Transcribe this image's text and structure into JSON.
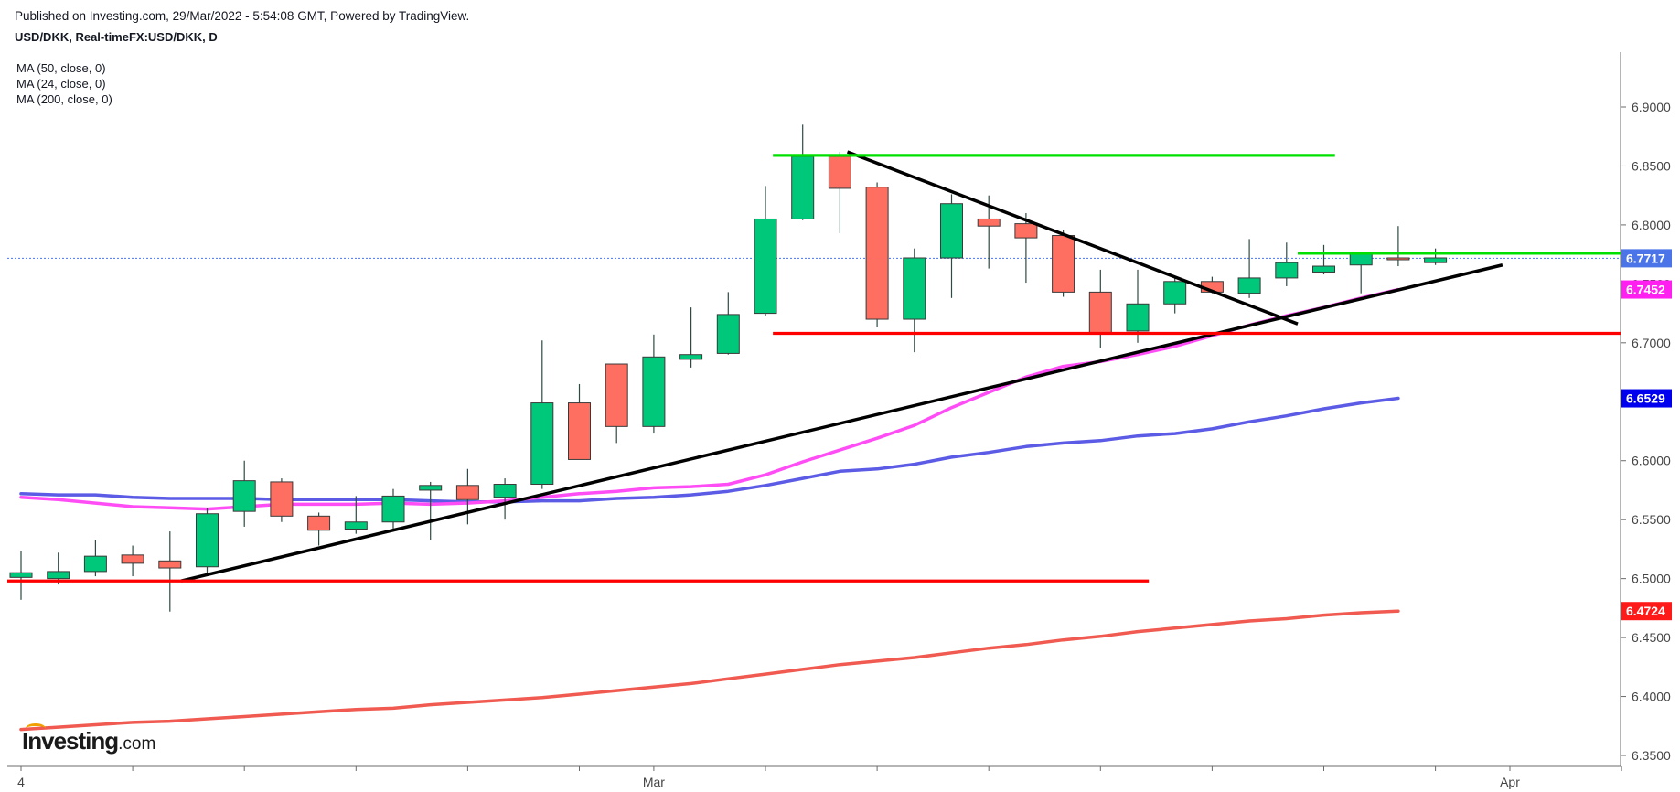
{
  "header": {
    "published": "Published on Investing.com, 29/Mar/2022 - 5:54:08 GMT, Powered by TradingView.",
    "symbol": "USD/DKK, Real-timeFX:USD/DKK, D"
  },
  "legend": {
    "ma50": "MA (50, close, 0)",
    "ma24": "MA (24, close, 0)",
    "ma200": "MA (200, close, 0)"
  },
  "logo": {
    "brand": "Investing",
    "suffix": ".com"
  },
  "chart_data": {
    "type": "candlestick",
    "y_axis": {
      "ticks": [
        "6.3500",
        "6.4000",
        "6.4500",
        "6.5000",
        "6.5500",
        "6.6000",
        "6.6500",
        "6.7000",
        "6.7500",
        "6.8000",
        "6.8500",
        "6.9000"
      ],
      "range": [
        6.342,
        6.945
      ],
      "position": "right"
    },
    "x_axis": {
      "labels": [
        {
          "bar": 0,
          "text": "4"
        },
        {
          "bar": 17,
          "text": "Mar"
        },
        {
          "bar": 40,
          "text": "Apr"
        }
      ],
      "tick_bars": [
        0,
        3,
        6,
        9,
        12,
        15,
        17,
        20,
        23,
        26,
        29,
        32,
        35,
        38,
        40,
        43
      ],
      "total_slots": 43.2
    },
    "candles": [
      {
        "o": 6.501,
        "h": 6.523,
        "l": 6.482,
        "c": 6.505
      },
      {
        "o": 6.5,
        "h": 6.522,
        "l": 6.495,
        "c": 6.506
      },
      {
        "o": 6.506,
        "h": 6.533,
        "l": 6.502,
        "c": 6.519
      },
      {
        "o": 6.52,
        "h": 6.528,
        "l": 6.502,
        "c": 6.513
      },
      {
        "o": 6.515,
        "h": 6.54,
        "l": 6.472,
        "c": 6.509
      },
      {
        "o": 6.51,
        "h": 6.56,
        "l": 6.505,
        "c": 6.555
      },
      {
        "o": 6.557,
        "h": 6.6,
        "l": 6.544,
        "c": 6.583
      },
      {
        "o": 6.582,
        "h": 6.585,
        "l": 6.548,
        "c": 6.553
      },
      {
        "o": 6.553,
        "h": 6.556,
        "l": 6.528,
        "c": 6.541
      },
      {
        "o": 6.542,
        "h": 6.57,
        "l": 6.538,
        "c": 6.548
      },
      {
        "o": 6.548,
        "h": 6.576,
        "l": 6.542,
        "c": 6.57
      },
      {
        "o": 6.575,
        "h": 6.582,
        "l": 6.533,
        "c": 6.579
      },
      {
        "o": 6.579,
        "h": 6.593,
        "l": 6.546,
        "c": 6.567
      },
      {
        "o": 6.569,
        "h": 6.585,
        "l": 6.55,
        "c": 6.58
      },
      {
        "o": 6.58,
        "h": 6.702,
        "l": 6.576,
        "c": 6.649
      },
      {
        "o": 6.649,
        "h": 6.665,
        "l": 6.601,
        "c": 6.601
      },
      {
        "o": 6.682,
        "h": 6.682,
        "l": 6.615,
        "c": 6.629
      },
      {
        "o": 6.629,
        "h": 6.707,
        "l": 6.623,
        "c": 6.688
      },
      {
        "o": 6.686,
        "h": 6.73,
        "l": 6.679,
        "c": 6.69
      },
      {
        "o": 6.691,
        "h": 6.743,
        "l": 6.69,
        "c": 6.724
      },
      {
        "o": 6.725,
        "h": 6.833,
        "l": 6.723,
        "c": 6.805
      },
      {
        "o": 6.805,
        "h": 6.885,
        "l": 6.804,
        "c": 6.858
      },
      {
        "o": 6.858,
        "h": 6.862,
        "l": 6.793,
        "c": 6.831
      },
      {
        "o": 6.832,
        "h": 6.836,
        "l": 6.713,
        "c": 6.72
      },
      {
        "o": 6.72,
        "h": 6.78,
        "l": 6.692,
        "c": 6.772
      },
      {
        "o": 6.772,
        "h": 6.826,
        "l": 6.738,
        "c": 6.818
      },
      {
        "o": 6.805,
        "h": 6.825,
        "l": 6.763,
        "c": 6.799
      },
      {
        "o": 6.801,
        "h": 6.81,
        "l": 6.751,
        "c": 6.789
      },
      {
        "o": 6.791,
        "h": 6.796,
        "l": 6.739,
        "c": 6.743
      },
      {
        "o": 6.743,
        "h": 6.762,
        "l": 6.696,
        "c": 6.708
      },
      {
        "o": 6.71,
        "h": 6.762,
        "l": 6.7,
        "c": 6.733
      },
      {
        "o": 6.733,
        "h": 6.756,
        "l": 6.725,
        "c": 6.752
      },
      {
        "o": 6.752,
        "h": 6.756,
        "l": 6.742,
        "c": 6.743
      },
      {
        "o": 6.742,
        "h": 6.788,
        "l": 6.738,
        "c": 6.755
      },
      {
        "o": 6.755,
        "h": 6.785,
        "l": 6.748,
        "c": 6.768
      },
      {
        "o": 6.76,
        "h": 6.783,
        "l": 6.758,
        "c": 6.765
      },
      {
        "o": 6.766,
        "h": 6.775,
        "l": 6.742,
        "c": 6.776
      },
      {
        "o": 6.772,
        "h": 6.799,
        "l": 6.765,
        "c": 6.771
      },
      {
        "o": 6.768,
        "h": 6.78,
        "l": 6.766,
        "c": 6.772
      }
    ],
    "moving_averages": [
      {
        "name": "MA (50, close, 0)",
        "color": "#5b5be6",
        "points": [
          [
            0,
            6.572
          ],
          [
            1,
            6.571
          ],
          [
            2,
            6.571
          ],
          [
            3,
            6.569
          ],
          [
            4,
            6.568
          ],
          [
            5,
            6.568
          ],
          [
            6,
            6.568
          ],
          [
            7,
            6.567
          ],
          [
            8,
            6.567
          ],
          [
            9,
            6.567
          ],
          [
            10,
            6.567
          ],
          [
            11,
            6.566
          ],
          [
            12,
            6.565
          ],
          [
            13,
            6.565
          ],
          [
            14,
            6.566
          ],
          [
            15,
            6.566
          ],
          [
            16,
            6.568
          ],
          [
            17,
            6.569
          ],
          [
            18,
            6.571
          ],
          [
            19,
            6.574
          ],
          [
            20,
            6.579
          ],
          [
            21,
            6.585
          ],
          [
            22,
            6.591
          ],
          [
            23,
            6.593
          ],
          [
            24,
            6.597
          ],
          [
            25,
            6.603
          ],
          [
            26,
            6.607
          ],
          [
            27,
            6.612
          ],
          [
            28,
            6.615
          ],
          [
            29,
            6.617
          ],
          [
            30,
            6.621
          ],
          [
            31,
            6.623
          ],
          [
            32,
            6.627
          ],
          [
            33,
            6.633
          ],
          [
            34,
            6.638
          ],
          [
            35,
            6.644
          ],
          [
            36,
            6.649
          ],
          [
            37,
            6.6529
          ]
        ]
      },
      {
        "name": "MA (24, close, 0)",
        "color": "#ff4df5",
        "points": [
          [
            0,
            6.569
          ],
          [
            1,
            6.567
          ],
          [
            2,
            6.564
          ],
          [
            3,
            6.561
          ],
          [
            4,
            6.56
          ],
          [
            5,
            6.559
          ],
          [
            6,
            6.561
          ],
          [
            7,
            6.563
          ],
          [
            8,
            6.563
          ],
          [
            9,
            6.563
          ],
          [
            10,
            6.564
          ],
          [
            11,
            6.563
          ],
          [
            12,
            6.564
          ],
          [
            13,
            6.566
          ],
          [
            14,
            6.569
          ],
          [
            15,
            6.572
          ],
          [
            16,
            6.574
          ],
          [
            17,
            6.577
          ],
          [
            18,
            6.578
          ],
          [
            19,
            6.58
          ],
          [
            20,
            6.588
          ],
          [
            21,
            6.599
          ],
          [
            22,
            6.609
          ],
          [
            23,
            6.619
          ],
          [
            24,
            6.63
          ],
          [
            25,
            6.645
          ],
          [
            26,
            6.658
          ],
          [
            27,
            6.671
          ],
          [
            28,
            6.68
          ],
          [
            29,
            6.684
          ],
          [
            30,
            6.69
          ],
          [
            31,
            6.697
          ],
          [
            32,
            6.706
          ],
          [
            33,
            6.715
          ],
          [
            34,
            6.723
          ],
          [
            35,
            6.73
          ],
          [
            36,
            6.738
          ],
          [
            37,
            6.7452
          ]
        ]
      },
      {
        "name": "MA (200, close, 0)",
        "color": "#f05a50",
        "points": [
          [
            0,
            6.372
          ],
          [
            1,
            6.374
          ],
          [
            2,
            6.376
          ],
          [
            3,
            6.378
          ],
          [
            4,
            6.379
          ],
          [
            5,
            6.381
          ],
          [
            6,
            6.383
          ],
          [
            7,
            6.385
          ],
          [
            8,
            6.387
          ],
          [
            9,
            6.389
          ],
          [
            10,
            6.39
          ],
          [
            11,
            6.393
          ],
          [
            12,
            6.395
          ],
          [
            13,
            6.397
          ],
          [
            14,
            6.399
          ],
          [
            15,
            6.402
          ],
          [
            16,
            6.405
          ],
          [
            17,
            6.408
          ],
          [
            18,
            6.411
          ],
          [
            19,
            6.415
          ],
          [
            20,
            6.419
          ],
          [
            21,
            6.423
          ],
          [
            22,
            6.427
          ],
          [
            23,
            6.43
          ],
          [
            24,
            6.433
          ],
          [
            25,
            6.437
          ],
          [
            26,
            6.441
          ],
          [
            27,
            6.444
          ],
          [
            28,
            6.448
          ],
          [
            29,
            6.451
          ],
          [
            30,
            6.455
          ],
          [
            31,
            6.458
          ],
          [
            32,
            6.461
          ],
          [
            33,
            6.464
          ],
          [
            34,
            6.466
          ],
          [
            35,
            6.469
          ],
          [
            36,
            6.471
          ],
          [
            37,
            6.4724
          ]
        ]
      }
    ],
    "trend_lines": [
      {
        "name": "rising-support-line",
        "color": "#000000",
        "from": [
          4.3,
          6.498
        ],
        "to": [
          39.8,
          6.766
        ]
      },
      {
        "name": "descending-resistance-line",
        "color": "#000000",
        "from": [
          22.2,
          6.862
        ],
        "to": [
          34.3,
          6.716
        ]
      },
      {
        "name": "top-resistance-line",
        "color": "#00e000",
        "from": [
          20.2,
          6.859
        ],
        "to": [
          35.3,
          6.859
        ]
      },
      {
        "name": "current-resistance-line",
        "color": "#00e000",
        "from": [
          34.3,
          6.776
        ],
        "to": [
          43.2,
          6.776
        ]
      },
      {
        "name": "mid-support-line",
        "color": "#ff0000",
        "from": [
          20.2,
          6.708
        ],
        "to": [
          43.2,
          6.708
        ]
      },
      {
        "name": "low-support-line",
        "color": "#ff0000",
        "from": [
          -0.4,
          6.498
        ],
        "to": [
          30.3,
          6.498
        ]
      }
    ],
    "last_price_line": {
      "value": 6.7717,
      "color": "#4a74e8"
    },
    "price_labels": [
      {
        "value": 6.7717,
        "text": "6.7717",
        "bg": "#4a74e8"
      },
      {
        "value": 6.7452,
        "text": "6.7452",
        "bg": "#ff1ff0"
      },
      {
        "value": 6.6529,
        "text": "6.6529",
        "bg": "#0000ee"
      },
      {
        "value": 6.4724,
        "text": "6.4724",
        "bg": "#ff1a1a"
      }
    ],
    "colors": {
      "up": "#00c87a",
      "down": "#ff6f61",
      "wick": "#2d4a44",
      "border": "#3a3a3a"
    }
  }
}
